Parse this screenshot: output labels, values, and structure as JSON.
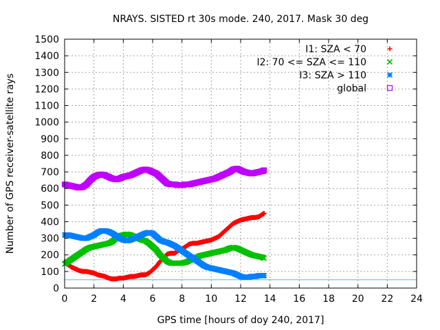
{
  "chart_data": {
    "type": "scatter",
    "title": "NRAYS. SISTED rt 30s mode. 240, 2017. Mask 30 deg",
    "xlabel": "GPS time [hours of doy 240, 2017]",
    "ylabel": "Number of GPS receiver-satellite rays",
    "xlim": [
      0,
      24
    ],
    "ylim": [
      0,
      1500
    ],
    "xticks": [
      0,
      2,
      4,
      6,
      8,
      10,
      12,
      14,
      16,
      18,
      20,
      22,
      24
    ],
    "yticks": [
      0,
      100,
      200,
      300,
      400,
      500,
      600,
      700,
      800,
      900,
      1000,
      1100,
      1200,
      1300,
      1400,
      1500
    ],
    "grid": true,
    "legend_position": "top-right",
    "threshold_line": {
      "y": 50,
      "color": "#40c0c0"
    },
    "series": [
      {
        "name": "I1: SZA < 70",
        "marker": "+",
        "color": "#ff0000",
        "x": [
          0.0,
          0.25,
          0.5,
          0.75,
          1.0,
          1.25,
          1.5,
          1.75,
          2.0,
          2.25,
          2.5,
          2.75,
          3.0,
          3.25,
          3.5,
          3.75,
          4.0,
          4.25,
          4.5,
          4.75,
          5.0,
          5.25,
          5.5,
          5.75,
          6.0,
          6.25,
          6.5,
          6.75,
          7.0,
          7.25,
          7.5,
          7.75,
          8.0,
          8.25,
          8.5,
          8.75,
          9.0,
          9.25,
          9.5,
          9.75,
          10.0,
          10.25,
          10.5,
          10.75,
          11.0,
          11.25,
          11.5,
          11.75,
          12.0,
          12.25,
          12.5,
          12.75,
          13.0,
          13.25,
          13.5,
          13.6
        ],
        "values": [
          160,
          140,
          125,
          115,
          105,
          100,
          100,
          95,
          90,
          80,
          75,
          70,
          60,
          55,
          55,
          60,
          60,
          65,
          70,
          70,
          75,
          80,
          80,
          90,
          110,
          130,
          160,
          180,
          205,
          210,
          210,
          225,
          235,
          250,
          265,
          270,
          270,
          275,
          280,
          285,
          290,
          300,
          310,
          330,
          350,
          370,
          390,
          400,
          410,
          415,
          420,
          425,
          425,
          430,
          445,
          450
        ]
      },
      {
        "name": "I2: 70 <= SZA <= 110",
        "marker": "x",
        "color": "#00c000",
        "x": [
          0.0,
          0.25,
          0.5,
          0.75,
          1.0,
          1.25,
          1.5,
          1.75,
          2.0,
          2.25,
          2.5,
          2.75,
          3.0,
          3.25,
          3.5,
          3.75,
          4.0,
          4.25,
          4.5,
          4.75,
          5.0,
          5.25,
          5.5,
          5.75,
          6.0,
          6.25,
          6.5,
          6.75,
          7.0,
          7.25,
          7.5,
          7.75,
          8.0,
          8.25,
          8.5,
          8.75,
          9.0,
          9.25,
          9.5,
          9.75,
          10.0,
          10.25,
          10.5,
          10.75,
          11.0,
          11.25,
          11.5,
          11.75,
          12.0,
          12.25,
          12.5,
          12.75,
          13.0,
          13.25,
          13.5,
          13.6
        ],
        "values": [
          145,
          160,
          175,
          190,
          205,
          220,
          235,
          245,
          250,
          255,
          260,
          265,
          270,
          280,
          300,
          315,
          320,
          325,
          320,
          310,
          300,
          290,
          285,
          270,
          250,
          230,
          200,
          180,
          160,
          150,
          150,
          150,
          150,
          155,
          165,
          175,
          185,
          195,
          200,
          205,
          210,
          215,
          220,
          225,
          230,
          240,
          245,
          240,
          230,
          220,
          210,
          200,
          195,
          190,
          185,
          180
        ]
      },
      {
        "name": "I3: SZA > 110",
        "marker": "*",
        "color": "#0080ff",
        "x": [
          0.0,
          0.25,
          0.5,
          0.75,
          1.0,
          1.25,
          1.5,
          1.75,
          2.0,
          2.25,
          2.5,
          2.75,
          3.0,
          3.25,
          3.5,
          3.75,
          4.0,
          4.25,
          4.5,
          4.75,
          5.0,
          5.25,
          5.5,
          5.75,
          6.0,
          6.25,
          6.5,
          6.75,
          7.0,
          7.25,
          7.5,
          7.75,
          8.0,
          8.25,
          8.5,
          8.75,
          9.0,
          9.25,
          9.5,
          9.75,
          10.0,
          10.25,
          10.5,
          10.75,
          11.0,
          11.25,
          11.5,
          11.75,
          12.0,
          12.25,
          12.5,
          12.75,
          13.0,
          13.25,
          13.5,
          13.6
        ],
        "values": [
          320,
          320,
          315,
          310,
          305,
          300,
          300,
          310,
          320,
          335,
          345,
          345,
          340,
          330,
          315,
          300,
          290,
          285,
          290,
          300,
          310,
          320,
          330,
          335,
          330,
          310,
          290,
          280,
          275,
          265,
          255,
          240,
          225,
          210,
          195,
          180,
          165,
          150,
          135,
          125,
          120,
          115,
          110,
          105,
          100,
          95,
          90,
          80,
          70,
          65,
          65,
          70,
          70,
          75,
          75,
          75
        ]
      },
      {
        "name": "global",
        "marker": "square",
        "color": "#c000ff",
        "x": [
          0.0,
          0.25,
          0.5,
          0.75,
          1.0,
          1.25,
          1.5,
          1.75,
          2.0,
          2.25,
          2.5,
          2.75,
          3.0,
          3.25,
          3.5,
          3.75,
          4.0,
          4.25,
          4.5,
          4.75,
          5.0,
          5.25,
          5.5,
          5.75,
          6.0,
          6.25,
          6.5,
          6.75,
          7.0,
          7.25,
          7.5,
          7.75,
          8.0,
          8.25,
          8.5,
          8.75,
          9.0,
          9.25,
          9.5,
          9.75,
          10.0,
          10.25,
          10.5,
          10.75,
          11.0,
          11.25,
          11.5,
          11.75,
          12.0,
          12.25,
          12.5,
          12.75,
          13.0,
          13.25,
          13.5,
          13.6
        ],
        "values": [
          625,
          620,
          615,
          610,
          605,
          610,
          625,
          650,
          670,
          680,
          685,
          680,
          670,
          660,
          655,
          660,
          670,
          675,
          680,
          690,
          700,
          710,
          715,
          710,
          700,
          690,
          670,
          650,
          630,
          625,
          625,
          620,
          620,
          625,
          625,
          630,
          635,
          640,
          645,
          650,
          655,
          660,
          670,
          680,
          690,
          700,
          715,
          720,
          710,
          700,
          695,
          690,
          695,
          700,
          705,
          710
        ]
      }
    ]
  }
}
